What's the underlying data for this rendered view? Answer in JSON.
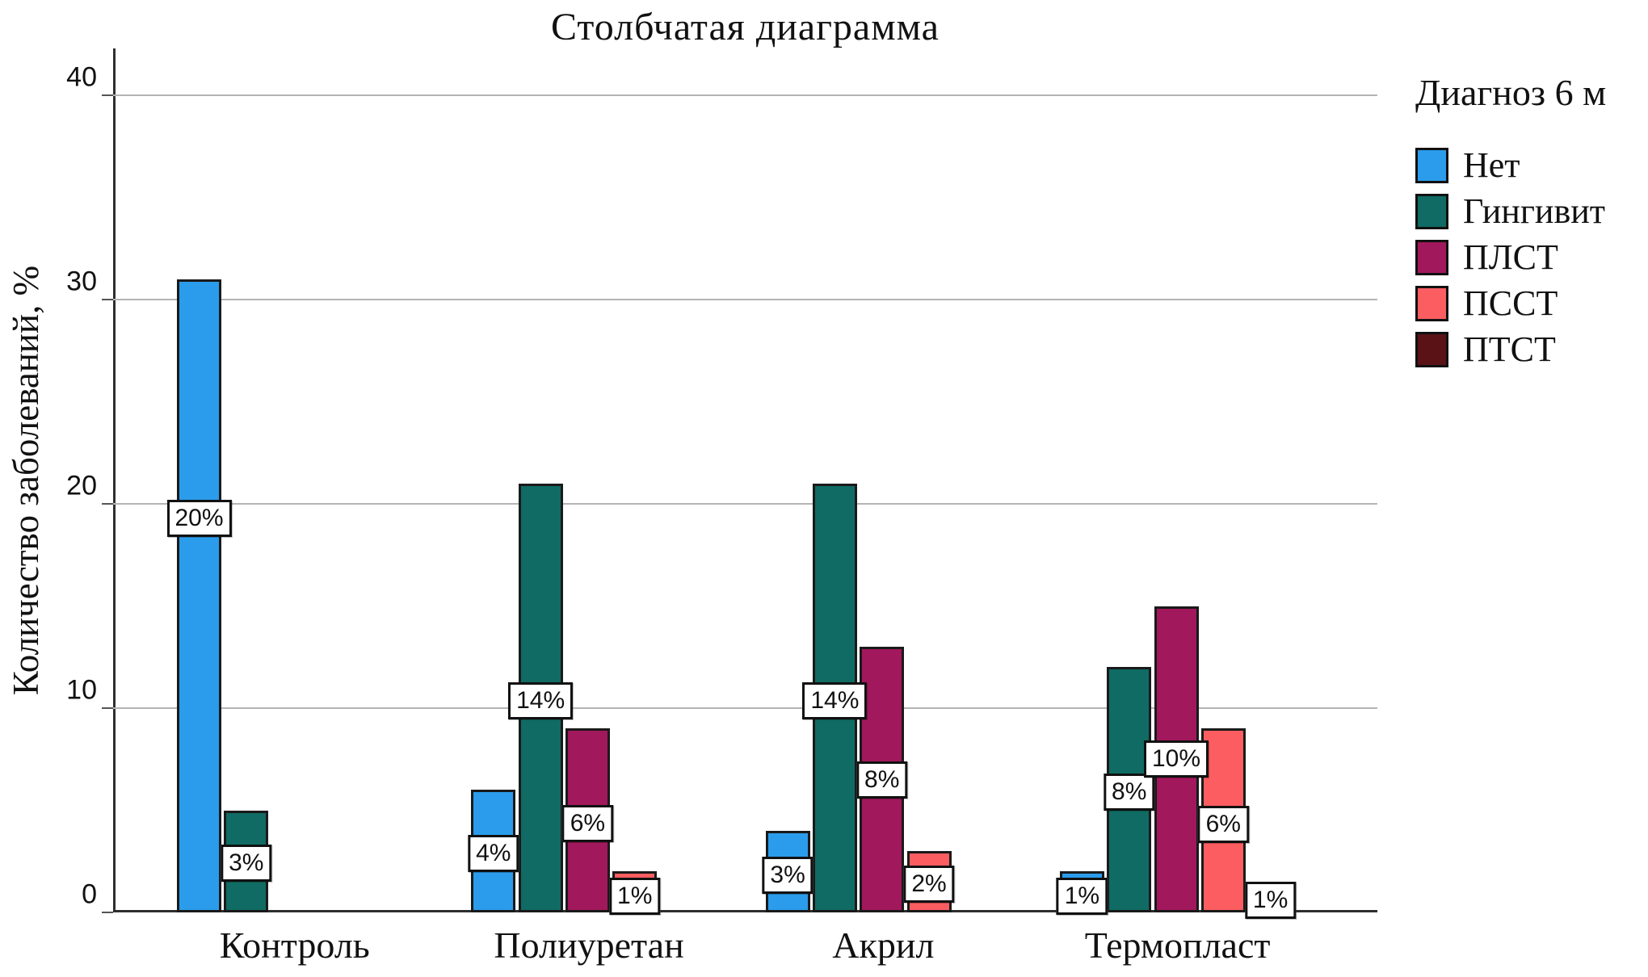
{
  "chart_data": {
    "type": "bar",
    "title": "Столбчатая диаграмма",
    "ylabel": "Количество заболеваний, %",
    "xlabel": "",
    "legend_title": "Диагноз 6 м",
    "legend_position": "right",
    "grid": true,
    "yticks": [
      0,
      10,
      20,
      30,
      40
    ],
    "ylim": [
      0,
      42.3
    ],
    "categories": [
      "Контроль",
      "Полиуретан",
      "Акрил",
      "Термопласт"
    ],
    "series": [
      {
        "name": "Нет",
        "color": "#2B9CEB",
        "values": [
          31,
          6,
          4,
          2
        ],
        "labels": [
          "20%",
          "4%",
          "3%",
          "1%"
        ],
        "label_pos": [
          19.3,
          2.9,
          1.8,
          0.8
        ]
      },
      {
        "name": "Гингивит",
        "color": "#0F6B63",
        "values": [
          5,
          21,
          21,
          12
        ],
        "labels": [
          "3%",
          "14%",
          "14%",
          "8%"
        ],
        "label_pos": [
          2.4,
          10.35,
          10.35,
          5.9
        ]
      },
      {
        "name": "ПЛСТ",
        "color": "#A2185C",
        "values": [
          null,
          9,
          13,
          15
        ],
        "labels": [
          null,
          "6%",
          "8%",
          "10%"
        ],
        "label_pos": [
          null,
          4.35,
          6.5,
          7.5
        ]
      },
      {
        "name": "ПССТ",
        "color": "#FB5D61",
        "values": [
          null,
          2,
          3,
          9
        ],
        "labels": [
          null,
          "1%",
          "2%",
          "6%"
        ],
        "label_pos": [
          null,
          0.8,
          1.4,
          4.3
        ]
      },
      {
        "name": "ПТСТ",
        "color": "#5A1216",
        "values": [
          null,
          null,
          null,
          1
        ],
        "labels": [
          null,
          null,
          null,
          "1%"
        ],
        "label_pos": [
          null,
          null,
          null,
          0.6
        ]
      }
    ]
  }
}
